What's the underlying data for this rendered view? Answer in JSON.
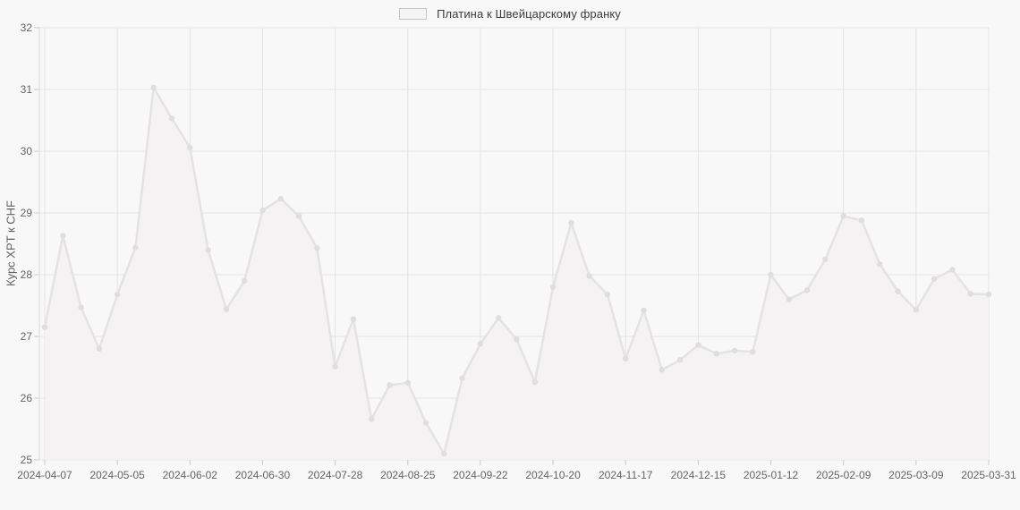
{
  "page": {
    "background": "#f8f8f8"
  },
  "legend": {
    "label": "Платина к Швейцарскому франку",
    "position": "top-center"
  },
  "y_axis": {
    "title": "Курс XPT к CHF",
    "tick_labels": [
      "32",
      "31",
      "30",
      "29",
      "28",
      "27",
      "26",
      "25"
    ]
  },
  "x_axis": {
    "tick_labels": [
      "2024-04-07",
      "2024-05-05",
      "2024-06-02",
      "2024-06-30",
      "2024-07-28",
      "2024-08-25",
      "2024-09-22",
      "2024-10-20",
      "2024-11-17",
      "2024-12-15",
      "2025-01-12",
      "2025-02-09",
      "2025-03-09",
      "2025-03-31"
    ]
  },
  "chart_data": {
    "type": "line",
    "title": "",
    "xlabel": "",
    "ylabel": "Курс XPT к CHF",
    "ylim": [
      25,
      32
    ],
    "grid": true,
    "legend_position": "top-center",
    "markers": true,
    "area_fill": true,
    "series": [
      {
        "name": "Платина к Швейцарскому франку",
        "x": [
          "2024-04-07",
          "2024-04-14",
          "2024-04-21",
          "2024-04-28",
          "2024-05-05",
          "2024-05-12",
          "2024-05-19",
          "2024-05-26",
          "2024-06-02",
          "2024-06-09",
          "2024-06-16",
          "2024-06-23",
          "2024-06-30",
          "2024-07-07",
          "2024-07-14",
          "2024-07-21",
          "2024-07-28",
          "2024-08-04",
          "2024-08-11",
          "2024-08-18",
          "2024-08-25",
          "2024-09-01",
          "2024-09-08",
          "2024-09-15",
          "2024-09-22",
          "2024-09-29",
          "2024-10-06",
          "2024-10-13",
          "2024-10-20",
          "2024-10-27",
          "2024-11-03",
          "2024-11-10",
          "2024-11-17",
          "2024-11-24",
          "2024-12-01",
          "2024-12-08",
          "2024-12-15",
          "2024-12-22",
          "2024-12-29",
          "2025-01-05",
          "2025-01-12",
          "2025-01-19",
          "2025-01-26",
          "2025-02-02",
          "2025-02-09",
          "2025-02-16",
          "2025-02-23",
          "2025-03-02",
          "2025-03-09",
          "2025-03-16",
          "2025-03-23",
          "2025-03-30",
          "2025-03-31"
        ],
        "values": [
          27.15,
          28.63,
          27.47,
          26.8,
          27.68,
          28.44,
          31.03,
          30.53,
          30.06,
          28.4,
          27.44,
          27.9,
          29.04,
          29.23,
          28.95,
          28.43,
          26.51,
          27.28,
          25.66,
          26.21,
          26.25,
          25.6,
          25.1,
          26.32,
          26.88,
          27.3,
          26.95,
          26.26,
          27.8,
          28.84,
          27.98,
          27.68,
          26.64,
          27.42,
          26.46,
          26.62,
          26.86,
          26.72,
          26.77,
          26.75,
          28.0,
          27.6,
          27.75,
          28.25,
          28.95,
          28.88,
          28.17,
          27.73,
          27.43,
          27.93,
          28.08,
          27.69,
          27.68
        ]
      }
    ]
  },
  "colors": {
    "background": "#f8f8f8",
    "gridline": "#e3e3e3",
    "axis_line": "#dadada",
    "tick_mark": "#cccccc",
    "series_line": "#e4e2e2",
    "series_fill": "#f4f2f2",
    "series_marker": "#dfdddd",
    "tick_text": "#646464",
    "axis_title_text": "#5f5f5f",
    "legend_text": "#3b3b3b",
    "legend_swatch_border": "#c8c6c6",
    "legend_swatch_fill": "#f6f4f4"
  }
}
